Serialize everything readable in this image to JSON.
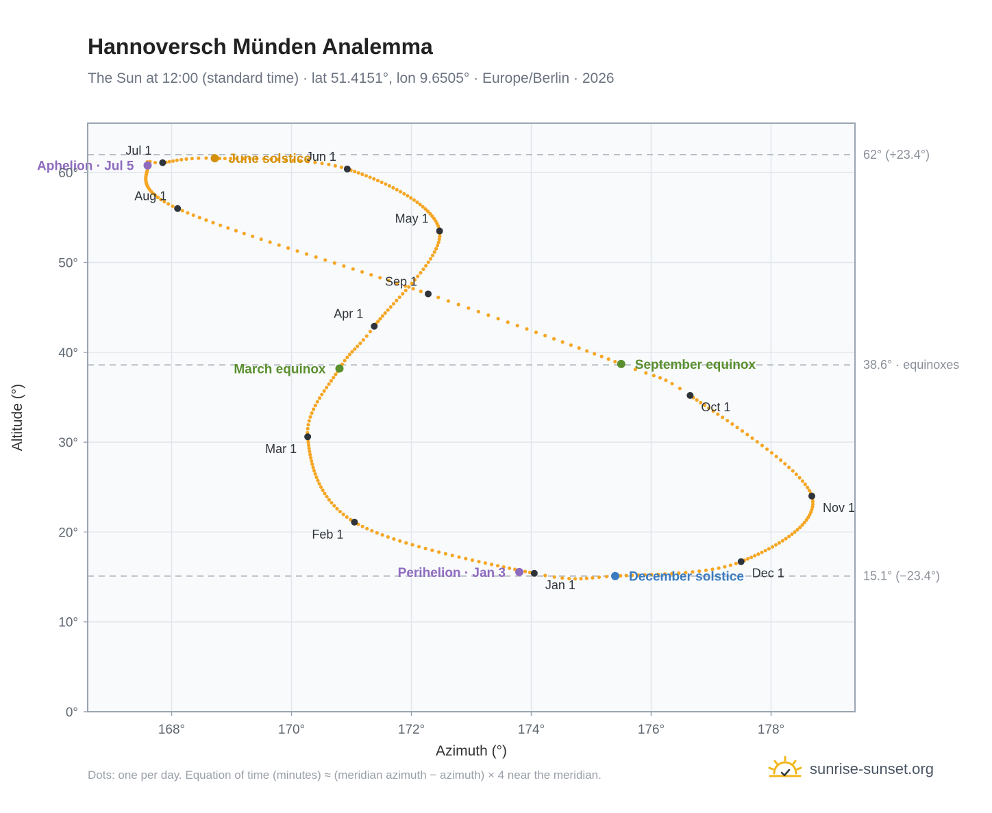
{
  "header": {
    "title": "Hannoversch Münden Analemma",
    "subtitle": "The Sun at 12:00 (standard time) · lat 51.4151°, lon 9.6505° · Europe/Berlin · 2026"
  },
  "footer": {
    "note": "Dots: one per day. Equation of time (minutes) ≈ (meridian azimuth − azimuth) × 4 near the meridian.",
    "brand": "sunrise-sunset.org"
  },
  "colors": {
    "path": "#f5a623",
    "month_marker": "#2f343b",
    "aphelion": "#8e6bbf",
    "perihelion": "#8e6bbf",
    "june_solstice": "#d4900a",
    "december_solstice": "#3b7bc0",
    "equinox": "#5a8f2e",
    "reference_line": "#b8bec6",
    "plot_background": "#f8fafc",
    "grid": "#e2e6ea",
    "frame": "#9aa4b2"
  },
  "chart_data": {
    "type": "scatter",
    "xlabel": "Azimuth (°)",
    "ylabel": "Altitude (°)",
    "xlim": [
      166.6,
      179.4
    ],
    "ylim": [
      0,
      65.5
    ],
    "x_ticks": [
      168,
      170,
      172,
      174,
      176,
      178
    ],
    "x_tick_labels": [
      "168°",
      "170°",
      "172°",
      "174°",
      "176°",
      "178°"
    ],
    "y_ticks": [
      0,
      10,
      20,
      30,
      40,
      50,
      60
    ],
    "y_tick_labels": [
      "0°",
      "10°",
      "20°",
      "30°",
      "40°",
      "50°",
      "60°"
    ],
    "grid": true,
    "path_keypoints": [
      {
        "day": 1,
        "az": 174.05,
        "alt": 15.4
      },
      {
        "day": 32,
        "az": 171.05,
        "alt": 21.1
      },
      {
        "day": 60,
        "az": 170.27,
        "alt": 30.6
      },
      {
        "day": 79,
        "az": 170.8,
        "alt": 38.2
      },
      {
        "day": 91,
        "az": 171.38,
        "alt": 42.9
      },
      {
        "day": 121,
        "az": 172.47,
        "alt": 53.5
      },
      {
        "day": 152,
        "az": 170.93,
        "alt": 60.4
      },
      {
        "day": 172,
        "az": 168.72,
        "alt": 61.6
      },
      {
        "day": 182,
        "az": 167.85,
        "alt": 61.1
      },
      {
        "day": 186,
        "az": 167.6,
        "alt": 60.8
      },
      {
        "day": 213,
        "az": 168.1,
        "alt": 56.0
      },
      {
        "day": 244,
        "az": 172.28,
        "alt": 46.5
      },
      {
        "day": 266,
        "az": 175.5,
        "alt": 38.7
      },
      {
        "day": 274,
        "az": 176.65,
        "alt": 35.2
      },
      {
        "day": 305,
        "az": 178.68,
        "alt": 24.0
      },
      {
        "day": 335,
        "az": 177.5,
        "alt": 16.7
      },
      {
        "day": 355,
        "az": 175.4,
        "alt": 15.1
      },
      {
        "day": 366,
        "az": 174.05,
        "alt": 15.4
      }
    ],
    "month_markers": [
      {
        "label": "Jan 1",
        "az": 174.05,
        "alt": 15.4,
        "anchor": "below-right"
      },
      {
        "label": "Feb 1",
        "az": 171.05,
        "alt": 21.1,
        "anchor": "below-left"
      },
      {
        "label": "Mar 1",
        "az": 170.27,
        "alt": 30.6,
        "anchor": "below-left"
      },
      {
        "label": "Apr 1",
        "az": 171.38,
        "alt": 42.9,
        "anchor": "above-left"
      },
      {
        "label": "May 1",
        "az": 172.47,
        "alt": 53.5,
        "anchor": "above-left"
      },
      {
        "label": "Jun 1",
        "az": 170.93,
        "alt": 60.4,
        "anchor": "above-left"
      },
      {
        "label": "Jul 1",
        "az": 167.85,
        "alt": 61.1,
        "anchor": "above-left"
      },
      {
        "label": "Aug 1",
        "az": 168.1,
        "alt": 56.0,
        "anchor": "above-left"
      },
      {
        "label": "Sep 1",
        "az": 172.28,
        "alt": 46.5,
        "anchor": "above-left"
      },
      {
        "label": "Oct 1",
        "az": 176.65,
        "alt": 35.2,
        "anchor": "below-right"
      },
      {
        "label": "Nov 1",
        "az": 178.68,
        "alt": 24.0,
        "anchor": "below-right"
      },
      {
        "label": "Dec 1",
        "az": 177.5,
        "alt": 16.7,
        "anchor": "below-right"
      }
    ],
    "events": [
      {
        "label": "Aphelion · Jul 5",
        "az": 167.6,
        "alt": 60.8,
        "color_key": "aphelion",
        "side": "left"
      },
      {
        "label": "June solstice",
        "az": 168.72,
        "alt": 61.6,
        "color_key": "june_solstice",
        "side": "right"
      },
      {
        "label": "March equinox",
        "az": 170.8,
        "alt": 38.2,
        "color_key": "equinox",
        "side": "left"
      },
      {
        "label": "September equinox",
        "az": 175.5,
        "alt": 38.7,
        "color_key": "equinox",
        "side": "right"
      },
      {
        "label": "Perihelion · Jan 3",
        "az": 173.8,
        "alt": 15.55,
        "color_key": "perihelion",
        "side": "left"
      },
      {
        "label": "December solstice",
        "az": 175.4,
        "alt": 15.1,
        "color_key": "december_solstice",
        "side": "right"
      }
    ],
    "reference_lines": [
      {
        "alt": 62.0,
        "label": "62° (+23.4°)"
      },
      {
        "alt": 38.6,
        "label": "38.6° · equinoxes"
      },
      {
        "alt": 15.1,
        "label": "15.1° (−23.4°)"
      }
    ]
  }
}
